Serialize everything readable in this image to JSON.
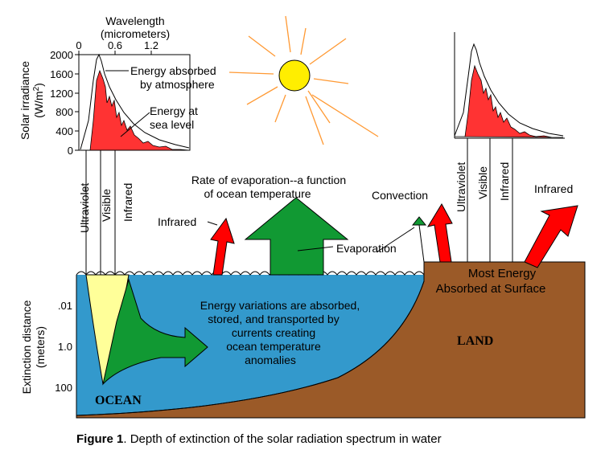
{
  "colors": {
    "ocean": "#3399cc",
    "land": "#9b5a28",
    "sun": "#ffee00",
    "sun_rays": "#ff9933",
    "infrared_arrow": "#ff0000",
    "evaporation_arrow": "#119933",
    "spectrum_fill": "#ff3333",
    "visible_band": "#ffff99"
  },
  "spectrum_chart": {
    "x_axis_title_line1": "Wavelength",
    "x_axis_title_line2": "(micrometers)",
    "x_ticks": [
      "0",
      "0.6",
      "1.2"
    ],
    "y_axis_title_line1": "Solar irradiance",
    "y_axis_title_line2": "(W/m",
    "y_axis_title_sup": "2",
    "y_axis_title_close": ")",
    "y_ticks": [
      "2000",
      "1600",
      "1200",
      "800",
      "400",
      "0"
    ],
    "annotation_atmosphere_line1": "Energy absorbed",
    "annotation_atmosphere_line2": "by atmosphere",
    "annotation_sea_level_line1": "Energy at",
    "annotation_sea_level_line2": "sea level"
  },
  "band_labels": {
    "ultraviolet": "Ultraviolet",
    "visible": "Visible",
    "infrared": "Infrared"
  },
  "labels": {
    "evaporation_rate_line1": "Rate of evaporation--a function",
    "evaporation_rate_line2": "of ocean temperature",
    "infrared_left": "Infrared",
    "convection": "Convection",
    "evaporation": "Evaporation",
    "infrared_right": "Infrared",
    "most_energy_line1": "Most Energy",
    "most_energy_line2": "Absorbed at Surface",
    "energy_variations_line1": "Energy variations are absorbed,",
    "energy_variations_line2": "stored, and transported by",
    "energy_variations_line3": "currents creating",
    "energy_variations_line4": "ocean temperature",
    "energy_variations_line5": "anomalies",
    "land": "LAND",
    "ocean": "OCEAN"
  },
  "extinction_axis": {
    "title_line1": "Extinction distance",
    "title_line2": "(meters)",
    "ticks": [
      ".01",
      "1.0",
      "100"
    ]
  },
  "caption": {
    "figure_label": "Figure 1",
    "text": ".  Depth of extinction of the solar radiation spectrum in water"
  }
}
